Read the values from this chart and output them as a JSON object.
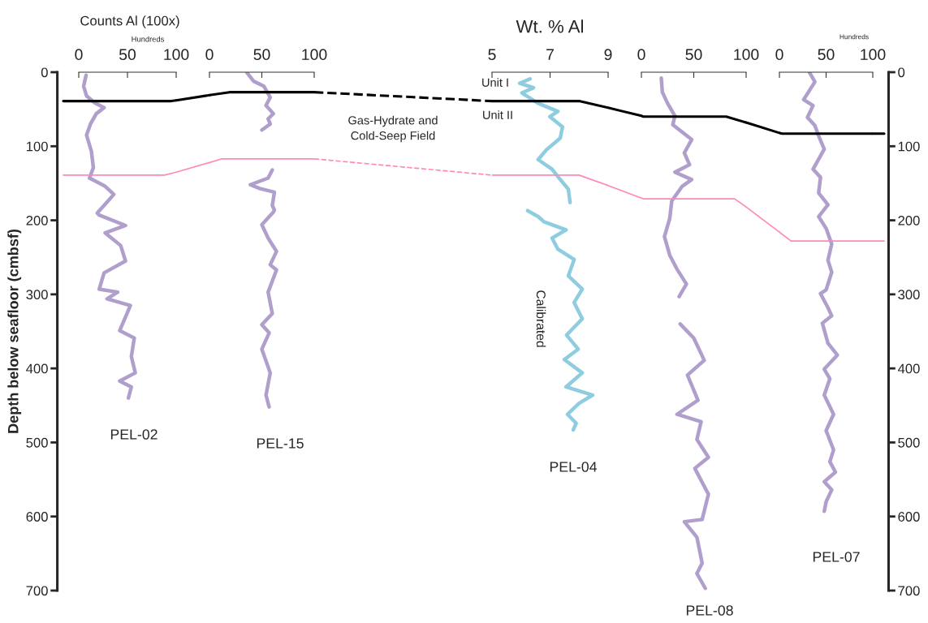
{
  "chart_data": [
    {
      "type": "line",
      "ylabel": "Depth below seafloor (cmbsf)",
      "annotations": [
        "Counts Al (100x)",
        "Hundreds",
        "PEL-02"
      ],
      "xlim": [
        0,
        100
      ],
      "xticks": [
        0,
        50,
        100
      ],
      "ylim": [
        700,
        0
      ],
      "yticks": [
        0,
        100,
        200,
        300,
        400,
        500,
        600,
        700
      ],
      "grid": false,
      "series": [
        {
          "color": "#b09fcc",
          "x": [
            7.5,
            5,
            8,
            16,
            26,
            18,
            12,
            8,
            13,
            15,
            11,
            27,
            36,
            26,
            19,
            21,
            48,
            27,
            43,
            48,
            26,
            21,
            40,
            29,
            53,
            42,
            57,
            54,
            58,
            42,
            54,
            51
          ],
          "values": [
            4,
            19,
            32,
            41,
            48,
            56,
            70,
            85,
            107,
            129,
            143,
            154,
            165,
            180,
            190,
            193,
            207,
            217,
            234,
            255,
            271,
            293,
            297,
            306,
            315,
            349,
            359,
            384,
            406,
            417,
            425,
            440
          ]
        },
        {
          "color": "#000000",
          "x": [
            0,
            95,
            100
          ],
          "values": [
            39,
            39,
            38
          ]
        },
        {
          "color": "#ff88bb",
          "x": [
            0,
            88,
            100
          ],
          "values": [
            139,
            139,
            135
          ]
        }
      ]
    },
    {
      "type": "line",
      "annotations": [
        "PEL-15"
      ],
      "xlim": [
        0,
        100
      ],
      "xticks": [
        0,
        50,
        100
      ],
      "ylim": [
        700,
        0
      ],
      "tick_labels": "x",
      "grid": false,
      "series": [
        {
          "color": "#b09fcc",
          "x": [
            36,
            42,
            52,
            58,
            54,
            61,
            56,
            58,
            50,
            null,
            60,
            56,
            39,
            48,
            62,
            60,
            62,
            61,
            50,
            56,
            64,
            58,
            64,
            56,
            60,
            50,
            57,
            50,
            58,
            54,
            56,
            57
          ],
          "values": [
            1,
            12,
            19,
            34,
            45,
            56,
            63,
            70,
            78,
            null,
            132,
            143,
            152,
            157,
            162,
            180,
            186,
            189,
            206,
            224,
            242,
            260,
            267,
            297,
            326,
            341,
            352,
            374,
            406,
            436,
            447,
            452
          ]
        },
        {
          "color": "#000000",
          "x": [
            0,
            19,
            100
          ],
          "values": [
            31,
            27,
            27
          ]
        },
        {
          "color": "#ff88bb",
          "x": [
            0,
            12,
            100
          ],
          "values": [
            122,
            117,
            117
          ]
        }
      ]
    },
    {
      "type": "line",
      "xlabel": "Wt. % Al",
      "annotations": [
        "Unit I",
        "Unit II",
        "Gas-Hydrate and\nCold-Seep Field",
        "Calibrated",
        "PEL-04"
      ],
      "xlim": [
        5,
        9
      ],
      "xticks": [
        5,
        7,
        9
      ],
      "ylim": [
        700,
        0
      ],
      "tick_labels": "x",
      "grid": false,
      "series": [
        {
          "color": "#8ecde0",
          "x": [
            6.31,
            5.95,
            6.43,
            6.03,
            6.59,
            7.27,
            6.99,
            7.43,
            7.35,
            6.87,
            6.59,
            7.07,
            7.29,
            7.63,
            7.69,
            null,
            6.23,
            6.59,
            6.79,
            7.55,
            7.07,
            7.27,
            7.83,
            7.63,
            8.11,
            7.83,
            8.11,
            7.57,
            7.97,
            7.49,
            8.11,
            7.55,
            8.47,
            8.0,
            7.6,
            7.9,
            7.8
          ],
          "values": [
            9,
            15,
            21,
            28,
            42,
            53,
            60,
            74,
            89,
            105,
            118,
            131,
            142,
            158,
            176,
            null,
            187,
            195,
            202,
            213,
            224,
            239,
            253,
            275,
            293,
            311,
            333,
            355,
            374,
            388,
            406,
            425,
            436,
            447,
            462,
            474,
            483
          ]
        },
        {
          "color": "#000000",
          "x": [
            5,
            8,
            9
          ],
          "values": [
            39,
            39,
            48
          ]
        },
        {
          "color": "#ff88bb",
          "x": [
            5,
            8,
            9
          ],
          "values": [
            139,
            139,
            153
          ]
        }
      ]
    },
    {
      "type": "line",
      "annotations": [
        "PEL-08"
      ],
      "xlim": [
        0,
        100
      ],
      "xticks": [
        0,
        50,
        100
      ],
      "ylim": [
        700,
        0
      ],
      "tick_labels": "x",
      "grid": false,
      "series": [
        {
          "color": "#b09fcc",
          "x": [
            19,
            20,
            25,
            32,
            30,
            48,
            41,
            46,
            32,
            48,
            39,
            29,
            27,
            22,
            27,
            34,
            43,
            36,
            null,
            37,
            50,
            60,
            44,
            54,
            34,
            57,
            53,
            64,
            51,
            64,
            58,
            41,
            53,
            58,
            53,
            61
          ],
          "values": [
            8,
            27,
            42,
            59,
            71,
            91,
            109,
            125,
            135,
            145,
            154,
            174,
            198,
            222,
            247,
            266,
            286,
            303,
            null,
            340,
            359,
            389,
            409,
            443,
            462,
            472,
            496,
            520,
            535,
            570,
            604,
            607,
            628,
            663,
            677,
            697
          ]
        },
        {
          "color": "#000000",
          "x": [
            0,
            2,
            81,
            100
          ],
          "values": [
            59,
            60,
            60,
            68
          ]
        },
        {
          "color": "#ff88bb",
          "x": [
            0,
            2,
            89,
            100
          ],
          "values": [
            170,
            171,
            171,
            182
          ]
        }
      ]
    },
    {
      "type": "line",
      "annotations": [
        "Hundreds",
        "PEL-07"
      ],
      "xlim": [
        0,
        100
      ],
      "xticks": [
        0,
        50,
        100
      ],
      "ylim": [
        700,
        0
      ],
      "yticks": [
        0,
        100,
        200,
        300,
        400,
        500,
        600,
        700
      ],
      "grid": false,
      "series": [
        {
          "color": "#b09fcc",
          "x": [
            32,
            38,
            26,
            36,
            30,
            38,
            42,
            48,
            36,
            44,
            42,
            52,
            42,
            50,
            56,
            52,
            56,
            50,
            44,
            52,
            56,
            46,
            52,
            62,
            48,
            54,
            48,
            58,
            50,
            58,
            54,
            60,
            48,
            56,
            50,
            48
          ],
          "values": [
            0,
            13,
            37,
            45,
            61,
            72,
            86,
            104,
            131,
            142,
            163,
            179,
            195,
            211,
            232,
            254,
            270,
            294,
            299,
            318,
            329,
            339,
            366,
            382,
            401,
            414,
            436,
            462,
            484,
            510,
            526,
            540,
            553,
            564,
            580,
            593
          ]
        },
        {
          "color": "#000000",
          "x": [
            0,
            3,
            100
          ],
          "values": [
            82,
            83,
            83
          ]
        },
        {
          "color": "#ff88bb",
          "x": [
            0,
            12.5,
            100
          ],
          "values": [
            216,
            228,
            228
          ]
        }
      ]
    }
  ]
}
